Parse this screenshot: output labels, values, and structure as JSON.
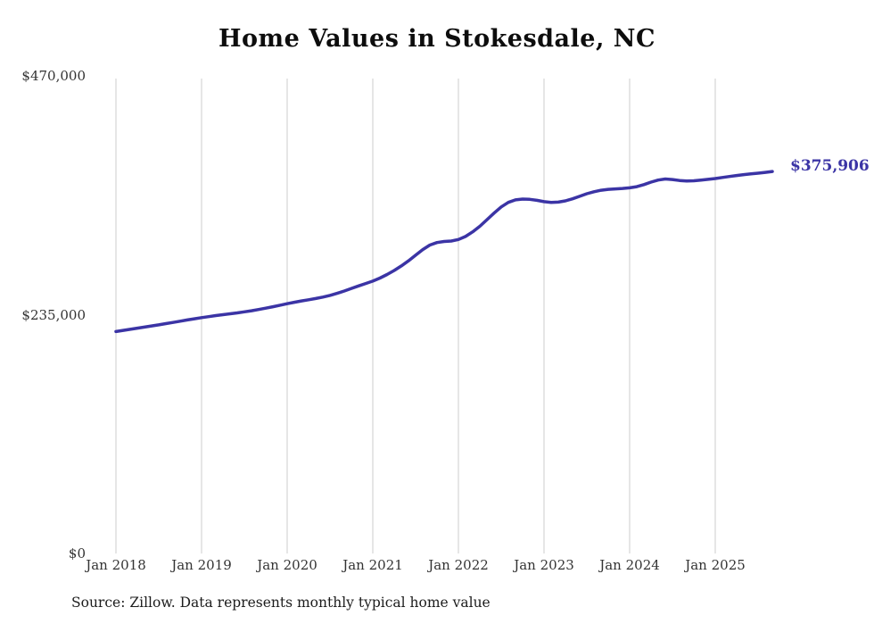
{
  "chart_data": {
    "type": "line",
    "title": "Home Values in Stokesdale, NC",
    "source": "Source: Zillow. Data represents monthly typical home value",
    "end_label": "$375,906",
    "line_color": "#3b34a5",
    "grid_color": "#cccccc",
    "ylim": [
      0,
      470000
    ],
    "y_ticks": [
      470000,
      235000,
      0
    ],
    "y_tick_labels": [
      "$470,000",
      "$235,000",
      "$0"
    ],
    "x_tick_labels": [
      "Jan 2018",
      "Jan 2019",
      "Jan 2020",
      "Jan 2021",
      "Jan 2022",
      "Jan 2023",
      "Jan 2024",
      "Jan 2025"
    ],
    "x_start": "Jan 2018",
    "x_end": "Sep 2025",
    "interval": "monthly",
    "ylabel": "",
    "xlabel": "",
    "grid": "vertical-only",
    "values": [
      218400,
      219500,
      220600,
      221700,
      222800,
      223900,
      225000,
      226200,
      227400,
      228600,
      229800,
      231000,
      232100,
      233100,
      234100,
      235000,
      235900,
      236800,
      237800,
      238900,
      240100,
      241400,
      242800,
      244300,
      245800,
      247200,
      248500,
      249700,
      250900,
      252300,
      254000,
      256000,
      258300,
      260800,
      263300,
      265700,
      268000,
      271000,
      274500,
      278500,
      283000,
      288000,
      293500,
      299000,
      303500,
      306000,
      307000,
      307500,
      309000,
      312000,
      316500,
      322000,
      328500,
      335000,
      341000,
      345500,
      348000,
      348800,
      348500,
      347500,
      346200,
      345500,
      345800,
      347000,
      349000,
      351500,
      354000,
      356000,
      357500,
      358300,
      358800,
      359200,
      359800,
      361000,
      363000,
      365500,
      367500,
      368500,
      368000,
      367000,
      366500,
      366800,
      367500,
      368200,
      369000,
      370000,
      371000,
      372000,
      372800,
      373500,
      374200,
      375000,
      375906
    ]
  }
}
